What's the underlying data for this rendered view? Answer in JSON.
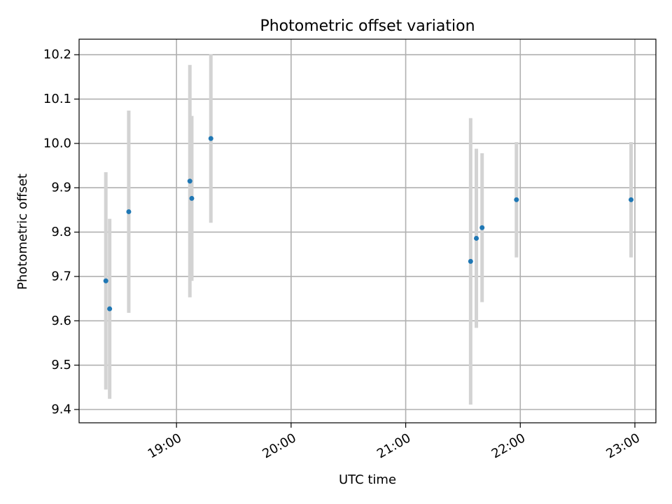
{
  "chart_data": {
    "type": "scatter",
    "title": "Photometric offset variation",
    "xlabel": "UTC time",
    "ylabel": "Photometric offset",
    "grid": true,
    "x_ticks": [
      "19:00",
      "20:00",
      "21:00",
      "22:00",
      "23:00"
    ],
    "y_ticks": [
      9.4,
      9.5,
      9.6,
      9.7,
      9.8,
      9.9,
      10.0,
      10.1,
      10.2
    ],
    "xlim": [
      "18:09",
      "23:11"
    ],
    "ylim": [
      9.37,
      10.235
    ],
    "marker_color": "#1f77b4",
    "errorbar_color": "#d3d3d3",
    "points": [
      {
        "x": "18:23",
        "y": 9.69,
        "err": 0.245
      },
      {
        "x": "18:25",
        "y": 9.627,
        "err": 0.203
      },
      {
        "x": "18:35",
        "y": 9.846,
        "err": 0.228
      },
      {
        "x": "19:07",
        "y": 9.915,
        "err": 0.262
      },
      {
        "x": "19:08",
        "y": 9.876,
        "err": 0.186
      },
      {
        "x": "19:18",
        "y": 10.011,
        "err": 0.19
      },
      {
        "x": "21:34",
        "y": 9.734,
        "err": 0.323
      },
      {
        "x": "21:37",
        "y": 9.786,
        "err": 0.202
      },
      {
        "x": "21:40",
        "y": 9.81,
        "err": 0.168
      },
      {
        "x": "21:58",
        "y": 9.873,
        "err": 0.13
      },
      {
        "x": "22:58",
        "y": 9.873,
        "err": 0.13
      }
    ]
  }
}
